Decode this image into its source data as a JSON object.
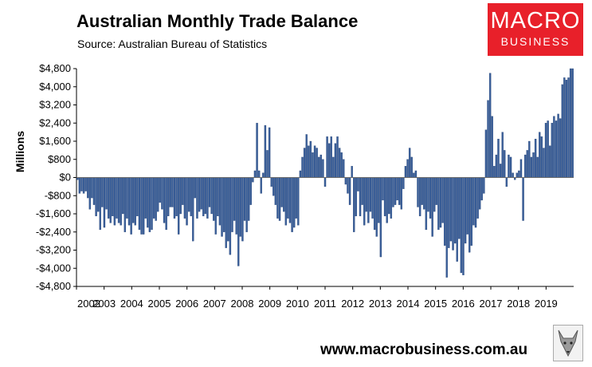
{
  "header": {
    "title": "Australian Monthly Trade Balance",
    "subtitle": "Source: Australian Bureau of Statistics"
  },
  "logo": {
    "line1": "MACRO",
    "line2": "BUSINESS"
  },
  "footer": {
    "url": "www.macrobusiness.com.au"
  },
  "colors": {
    "bar": "#3a5f9a",
    "bar_edge": "#1f3c6e",
    "logo_bg": "#e8202a",
    "grid": "#000000"
  },
  "chart_data": {
    "type": "bar",
    "title": "Australian Monthly Trade Balance",
    "xlabel": "",
    "ylabel": "Millions",
    "ylim": [
      -4800,
      4800
    ],
    "grid": false,
    "y_ticks": [
      "$4,800",
      "$4,000",
      "$3,200",
      "$2,400",
      "$1,600",
      "$800",
      "$0",
      "-$800",
      "-$1,600",
      "-$2,400",
      "-$3,200",
      "-$4,000",
      "-$4,800"
    ],
    "y_tick_values": [
      4800,
      4000,
      3200,
      2400,
      1600,
      800,
      0,
      -800,
      -1600,
      -2400,
      -3200,
      -4000,
      -4800
    ],
    "x_ticks": [
      "2002",
      "2003",
      "2004",
      "2005",
      "2006",
      "2007",
      "2008",
      "2009",
      "2010",
      "2011",
      "2012",
      "2013",
      "2014",
      "2015",
      "2016",
      "2017",
      "2018",
      "2019"
    ],
    "start": "2002-01",
    "series": [
      {
        "values": [
          -100,
          -700,
          -600,
          -700,
          -600,
          -900,
          -1400,
          -900,
          -1200,
          -1700,
          -1500,
          -2300,
          -1300,
          -2200,
          -1400,
          -1800,
          -2000,
          -1700,
          -2100,
          -1800,
          -2000,
          -2100,
          -1600,
          -2400,
          -1800,
          -2100,
          -2500,
          -2000,
          -2100,
          -1700,
          -2300,
          -2500,
          -2500,
          -1800,
          -2200,
          -2400,
          -2300,
          -1800,
          -1900,
          -1500,
          -1100,
          -1400,
          -2000,
          -2300,
          -1700,
          -1300,
          -1300,
          -1800,
          -1700,
          -2500,
          -1600,
          -1200,
          -1800,
          -2100,
          -1500,
          -1700,
          -2800,
          -900,
          -1800,
          -1500,
          -1400,
          -1700,
          -1600,
          -1800,
          -1300,
          -1600,
          -1900,
          -2500,
          -1700,
          -2100,
          -2600,
          -2400,
          -3100,
          -2800,
          -3400,
          -2400,
          -1900,
          -2500,
          -3900,
          -2600,
          -2800,
          -1900,
          -2400,
          -1900,
          -1200,
          -200,
          300,
          2400,
          300,
          -700,
          200,
          2300,
          1200,
          2200,
          -400,
          -800,
          -1200,
          -1800,
          -1900,
          -1300,
          -1500,
          -2100,
          -1800,
          -2000,
          -2400,
          -2200,
          -1800,
          -2100,
          300,
          900,
          1300,
          1900,
          1400,
          1600,
          1100,
          1400,
          1300,
          900,
          1000,
          800,
          -400,
          1800,
          1500,
          1800,
          900,
          1500,
          1800,
          1300,
          1100,
          800,
          -300,
          -700,
          -1200,
          500,
          -2400,
          -1700,
          -600,
          -1700,
          -1200,
          -2100,
          -1500,
          -2000,
          -1500,
          -1800,
          -2300,
          -2600,
          -2000,
          -3500,
          -1000,
          -1700,
          -2000,
          -1600,
          -1800,
          -1300,
          -1200,
          -1000,
          -1200,
          -1400,
          -500,
          500,
          800,
          1300,
          900,
          200,
          300,
          -1300,
          -1700,
          -1200,
          -1400,
          -2300,
          -1500,
          -1800,
          -2600,
          -1500,
          -1200,
          -2300,
          -2200,
          -2000,
          -3000,
          -4400,
          -3100,
          -2800,
          -3200,
          -2900,
          -3700,
          -2700,
          -4200,
          -4300,
          -2900,
          -2500,
          -3300,
          -3000,
          -2100,
          -2200,
          -1800,
          -1400,
          -1000,
          -700,
          2100,
          3400,
          4600,
          2700,
          500,
          1000,
          1700,
          600,
          2000,
          1200,
          -400,
          1000,
          900,
          200,
          -100,
          200,
          300,
          800,
          -1900,
          1000,
          1200,
          1600,
          900,
          1100,
          1700,
          900,
          2000,
          1800,
          1300,
          2400,
          2500,
          1400,
          2400,
          2700,
          2500,
          2800,
          2600,
          4100,
          4400,
          4300,
          4400,
          4800,
          4800
        ]
      }
    ]
  }
}
